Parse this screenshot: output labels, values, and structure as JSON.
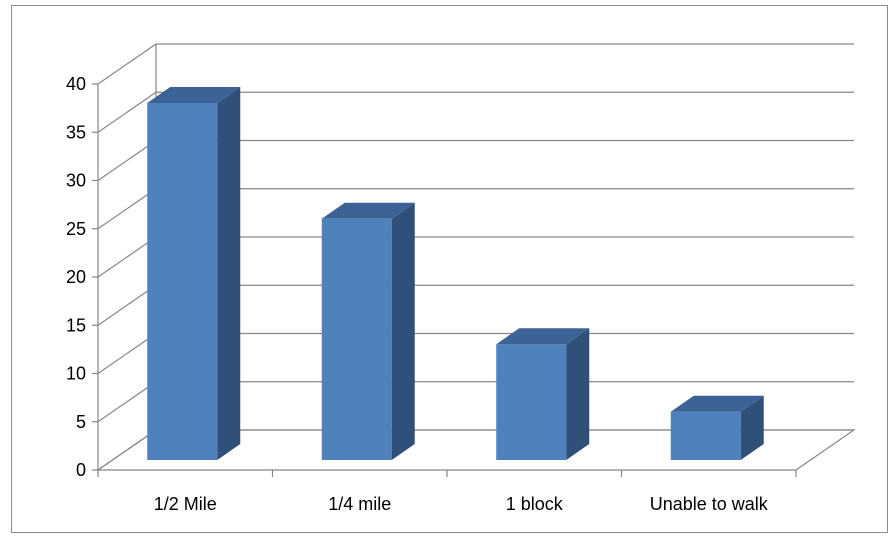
{
  "chart_data": {
    "type": "bar",
    "style": "3d-column",
    "categories": [
      "1/2 Mile",
      "1/4 mile",
      "1 block",
      "Unable to walk"
    ],
    "series": [
      {
        "values": [
          37,
          25,
          12,
          5
        ]
      }
    ],
    "title": "",
    "xlabel": "",
    "ylabel": "",
    "ylim": [
      0,
      40
    ],
    "yticks": [
      0,
      5,
      10,
      15,
      20,
      25,
      30,
      35,
      40
    ],
    "grid": true,
    "legend": "none",
    "colors": {
      "bar_front": "#4f81bd",
      "bar_side": "#2f5179",
      "bar_top": "#3b6396",
      "grid": "#868686",
      "axis": "#868686"
    }
  }
}
